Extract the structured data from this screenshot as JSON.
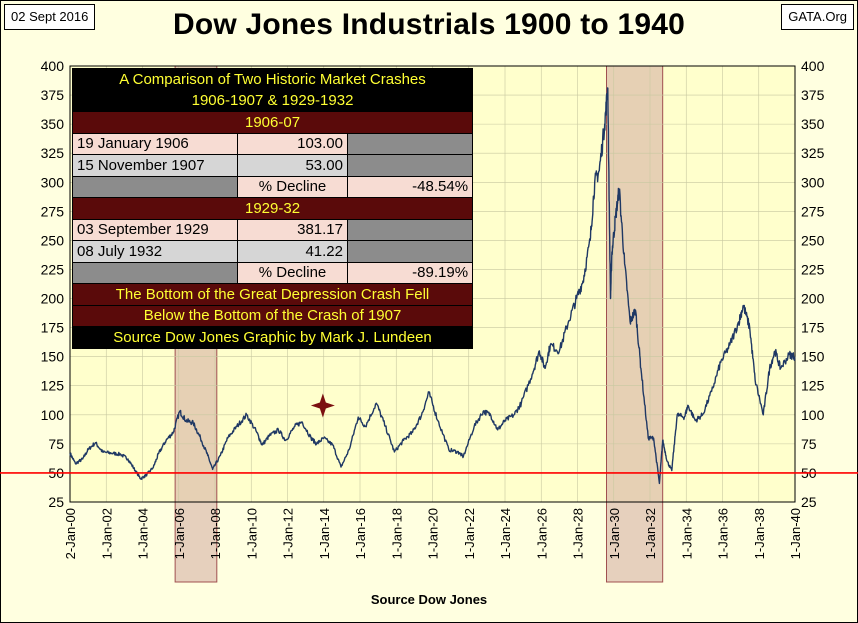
{
  "header": {
    "date_stamp": "02 Sept 2016",
    "source_stamp": "GATA.Org"
  },
  "info_box": {
    "title_line1": "A Comparison of Two Historic Market Crashes",
    "title_line2": "1906-1907 & 1929-1932",
    "crash1": {
      "heading": "1906-07",
      "rows": [
        {
          "date": "19 January 1906",
          "value": "103.00"
        },
        {
          "date": "15 November 1907",
          "value": "53.00"
        }
      ],
      "decline_label": "% Decline",
      "decline_value": "-48.54%"
    },
    "crash2": {
      "heading": "1929-32",
      "rows": [
        {
          "date": "03 September 1929",
          "value": "381.17"
        },
        {
          "date": "08 July 1932",
          "value": "41.22"
        }
      ],
      "decline_label": "% Decline",
      "decline_value": "-89.19%"
    },
    "note_line1": "The Bottom of the Great Depression Crash Fell",
    "note_line2": "Below the Bottom of the Crash of 1907",
    "credit": "Source Dow Jones  Graphic by Mark J. Lundeen"
  },
  "chart_data": {
    "type": "line",
    "title": "Dow Jones Industrials 1900 to 1940",
    "xlabel": "Source Dow Jones",
    "ylabel": "",
    "xlim": [
      1900,
      1940
    ],
    "ylim": [
      25,
      400
    ],
    "yticks": [
      25,
      50,
      75,
      100,
      125,
      150,
      175,
      200,
      225,
      250,
      275,
      300,
      325,
      350,
      375,
      400
    ],
    "xticks": [
      {
        "year": 1900,
        "label": "2-Jan-00"
      },
      {
        "year": 1902,
        "label": "1-Jan-02"
      },
      {
        "year": 1904,
        "label": "1-Jan-04"
      },
      {
        "year": 1906,
        "label": "1-Jan-06"
      },
      {
        "year": 1908,
        "label": "1-Jan-08"
      },
      {
        "year": 1910,
        "label": "1-Jan-10"
      },
      {
        "year": 1912,
        "label": "1-Jan-12"
      },
      {
        "year": 1914,
        "label": "1-Jan-14"
      },
      {
        "year": 1916,
        "label": "1-Jan-16"
      },
      {
        "year": 1918,
        "label": "1-Jan-18"
      },
      {
        "year": 1920,
        "label": "1-Jan-20"
      },
      {
        "year": 1922,
        "label": "1-Jan-22"
      },
      {
        "year": 1924,
        "label": "1-Jan-24"
      },
      {
        "year": 1926,
        "label": "1-Jan-26"
      },
      {
        "year": 1928,
        "label": "1-Jan-28"
      },
      {
        "year": 1930,
        "label": "1-Jan-30"
      },
      {
        "year": 1932,
        "label": "1-Jan-32"
      },
      {
        "year": 1934,
        "label": "1-Jan-34"
      },
      {
        "year": 1936,
        "label": "1-Jan-36"
      },
      {
        "year": 1938,
        "label": "1-Jan-38"
      },
      {
        "year": 1940,
        "label": "1-Jan-40"
      }
    ],
    "grid": true,
    "series": [
      {
        "color": "#1f3864",
        "points": [
          [
            1900.0,
            67
          ],
          [
            1900.3,
            58
          ],
          [
            1900.7,
            62
          ],
          [
            1901.0,
            70
          ],
          [
            1901.4,
            76
          ],
          [
            1901.8,
            68
          ],
          [
            1902.3,
            67
          ],
          [
            1902.8,
            66
          ],
          [
            1903.2,
            62
          ],
          [
            1903.6,
            52
          ],
          [
            1903.9,
            45
          ],
          [
            1904.2,
            48
          ],
          [
            1904.6,
            55
          ],
          [
            1904.9,
            67
          ],
          [
            1905.3,
            78
          ],
          [
            1905.7,
            85
          ],
          [
            1906.05,
            103
          ],
          [
            1906.4,
            95
          ],
          [
            1906.8,
            93
          ],
          [
            1907.2,
            80
          ],
          [
            1907.6,
            65
          ],
          [
            1907.87,
            53
          ],
          [
            1908.3,
            65
          ],
          [
            1908.7,
            80
          ],
          [
            1909.2,
            90
          ],
          [
            1909.75,
            100
          ],
          [
            1910.3,
            85
          ],
          [
            1910.6,
            74
          ],
          [
            1911.0,
            82
          ],
          [
            1911.5,
            87
          ],
          [
            1911.9,
            78
          ],
          [
            1912.4,
            90
          ],
          [
            1912.8,
            94
          ],
          [
            1913.3,
            80
          ],
          [
            1913.6,
            75
          ],
          [
            1914.0,
            80
          ],
          [
            1914.5,
            74
          ],
          [
            1914.95,
            55
          ],
          [
            1915.4,
            70
          ],
          [
            1915.9,
            98
          ],
          [
            1916.3,
            90
          ],
          [
            1916.9,
            110
          ],
          [
            1917.4,
            90
          ],
          [
            1917.9,
            68
          ],
          [
            1918.4,
            78
          ],
          [
            1918.9,
            85
          ],
          [
            1919.4,
            100
          ],
          [
            1919.8,
            119
          ],
          [
            1920.3,
            95
          ],
          [
            1920.9,
            70
          ],
          [
            1921.4,
            68
          ],
          [
            1921.7,
            64
          ],
          [
            1922.3,
            90
          ],
          [
            1922.8,
            103
          ],
          [
            1923.2,
            100
          ],
          [
            1923.6,
            87
          ],
          [
            1924.0,
            95
          ],
          [
            1924.5,
            100
          ],
          [
            1924.9,
            110
          ],
          [
            1925.5,
            135
          ],
          [
            1925.9,
            155
          ],
          [
            1926.2,
            140
          ],
          [
            1926.5,
            160
          ],
          [
            1927.0,
            155
          ],
          [
            1927.5,
            180
          ],
          [
            1927.95,
            200
          ],
          [
            1928.3,
            215
          ],
          [
            1928.7,
            250
          ],
          [
            1928.95,
            300
          ],
          [
            1929.2,
            310
          ],
          [
            1929.5,
            350
          ],
          [
            1929.67,
            381
          ],
          [
            1929.82,
            200
          ],
          [
            1929.9,
            240
          ],
          [
            1930.1,
            270
          ],
          [
            1930.3,
            294
          ],
          [
            1930.6,
            230
          ],
          [
            1930.9,
            180
          ],
          [
            1931.2,
            190
          ],
          [
            1931.5,
            140
          ],
          [
            1931.9,
            80
          ],
          [
            1932.2,
            80
          ],
          [
            1932.52,
            41
          ],
          [
            1932.7,
            78
          ],
          [
            1932.95,
            60
          ],
          [
            1933.2,
            52
          ],
          [
            1933.5,
            100
          ],
          [
            1933.9,
            98
          ],
          [
            1934.1,
            108
          ],
          [
            1934.5,
            95
          ],
          [
            1934.9,
            100
          ],
          [
            1935.4,
            120
          ],
          [
            1935.9,
            145
          ],
          [
            1936.4,
            160
          ],
          [
            1936.9,
            180
          ],
          [
            1937.15,
            194
          ],
          [
            1937.5,
            175
          ],
          [
            1937.8,
            130
          ],
          [
            1938.25,
            100
          ],
          [
            1938.6,
            140
          ],
          [
            1938.9,
            155
          ],
          [
            1939.2,
            140
          ],
          [
            1939.7,
            152
          ],
          [
            1939.99,
            150
          ]
        ]
      }
    ],
    "reference_line": {
      "y": 50,
      "color": "#ff0000"
    },
    "highlight_bands": [
      {
        "x0": 1905.8,
        "x1": 1908.1,
        "color": "#d2aaa0"
      },
      {
        "x0": 1929.6,
        "x1": 1932.7,
        "color": "#d2aaa0"
      }
    ],
    "marker": {
      "x": 1913.95,
      "y": 108,
      "color": "#7b1010"
    }
  }
}
